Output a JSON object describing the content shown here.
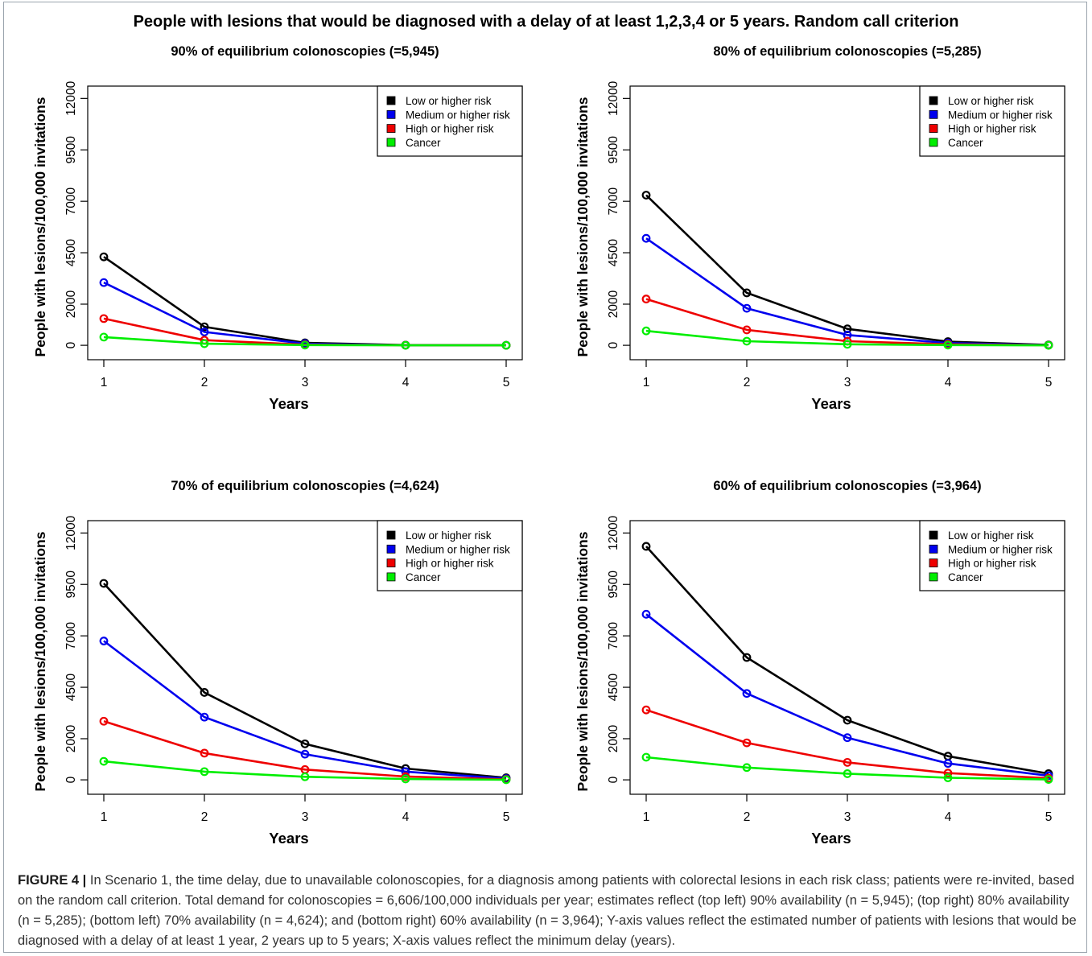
{
  "main_title": "People with lesions that would be diagnosed with a delay of at least 1,2,3,4 or 5 years. Random call criterion",
  "caption": {
    "label": "FIGURE 4 |",
    "text": " In Scenario 1, the time delay, due to unavailable colonoscopies, for a diagnosis among patients with colorectal lesions in each risk class; patients were re-invited, based on the random call criterion. Total demand for colonoscopies = 6,606/100,000 individuals per year; estimates reflect (top left) 90% availability (n = 5,945); (top right) 80% availability (n = 5,285); (bottom left) 70% availability (n = 4,624); and (bottom right) 60% availability (n = 3,964); Y-axis values reflect the estimated number of patients with lesions that would be diagnosed with a delay of at least 1 year, 2 years up to 5 years; X-axis values reflect the minimum delay (years)."
  },
  "colors": {
    "Low or higher risk": "#000000",
    "Medium or higher risk": "#0000ee",
    "High or higher risk": "#ee0000",
    "Cancer": "#00ee00"
  },
  "chart_data": [
    {
      "type": "line",
      "title": "90% of equilibrium colonoscopies (=5,945)",
      "xlabel": "Years",
      "ylabel": "People with lesions/100,000 invitations",
      "x": [
        1,
        2,
        3,
        4,
        5
      ],
      "xticks": [
        "1",
        "2",
        "3",
        "4",
        "5"
      ],
      "yticks": [
        "0",
        "2000",
        "4500",
        "7000",
        "9500",
        "12000"
      ],
      "ylim": [
        -700,
        12600
      ],
      "legend_position": "top-right",
      "series": [
        {
          "name": "Low or higher risk",
          "values": [
            4300,
            900,
            120,
            10,
            0
          ]
        },
        {
          "name": "Medium or higher risk",
          "values": [
            3050,
            650,
            80,
            5,
            0
          ]
        },
        {
          "name": "High or higher risk",
          "values": [
            1300,
            250,
            30,
            5,
            0
          ]
        },
        {
          "name": "Cancer",
          "values": [
            400,
            80,
            10,
            0,
            0
          ]
        }
      ]
    },
    {
      "type": "line",
      "title": "80% of equilibrium colonoscopies (=5,285)",
      "xlabel": "Years",
      "ylabel": "People with lesions/100,000 invitations",
      "x": [
        1,
        2,
        3,
        4,
        5
      ],
      "xticks": [
        "1",
        "2",
        "3",
        "4",
        "5"
      ],
      "yticks": [
        "0",
        "2000",
        "4500",
        "7000",
        "9500",
        "12000"
      ],
      "ylim": [
        -700,
        12600
      ],
      "legend_position": "top-right",
      "series": [
        {
          "name": "Low or higher risk",
          "values": [
            7300,
            2550,
            800,
            180,
            20
          ]
        },
        {
          "name": "Medium or higher risk",
          "values": [
            5200,
            1800,
            500,
            110,
            10
          ]
        },
        {
          "name": "High or higher risk",
          "values": [
            2250,
            750,
            200,
            50,
            5
          ]
        },
        {
          "name": "Cancer",
          "values": [
            700,
            200,
            50,
            10,
            0
          ]
        }
      ]
    },
    {
      "type": "line",
      "title": "70% of equilibrium colonoscopies (=4,624)",
      "xlabel": "Years",
      "ylabel": "People with lesions/100,000 invitations",
      "x": [
        1,
        2,
        3,
        4,
        5
      ],
      "xticks": [
        "1",
        "2",
        "3",
        "4",
        "5"
      ],
      "yticks": [
        "0",
        "2000",
        "4500",
        "7000",
        "9500",
        "12000"
      ],
      "ylim": [
        -700,
        12600
      ],
      "legend_position": "top-right",
      "series": [
        {
          "name": "Low or higher risk",
          "values": [
            9550,
            4250,
            1750,
            550,
            100
          ]
        },
        {
          "name": "Medium or higher risk",
          "values": [
            6750,
            3050,
            1250,
            400,
            60
          ]
        },
        {
          "name": "High or higher risk",
          "values": [
            2850,
            1300,
            500,
            160,
            25
          ]
        },
        {
          "name": "Cancer",
          "values": [
            900,
            400,
            150,
            45,
            5
          ]
        }
      ]
    },
    {
      "type": "line",
      "title": "60% of equilibrium colonoscopies (=3,964)",
      "xlabel": "Years",
      "ylabel": "People with lesions/100,000 invitations",
      "x": [
        1,
        2,
        3,
        4,
        5
      ],
      "xticks": [
        "1",
        "2",
        "3",
        "4",
        "5"
      ],
      "yticks": [
        "0",
        "2000",
        "4500",
        "7000",
        "9500",
        "12000"
      ],
      "ylim": [
        -700,
        12600
      ],
      "legend_position": "top-right",
      "series": [
        {
          "name": "Low or higher risk",
          "values": [
            11350,
            5950,
            2900,
            1150,
            300
          ]
        },
        {
          "name": "Medium or higher risk",
          "values": [
            8050,
            4200,
            2050,
            800,
            200
          ]
        },
        {
          "name": "High or higher risk",
          "values": [
            3400,
            1800,
            850,
            330,
            80
          ]
        },
        {
          "name": "Cancer",
          "values": [
            1100,
            600,
            300,
            100,
            20
          ]
        }
      ]
    }
  ]
}
